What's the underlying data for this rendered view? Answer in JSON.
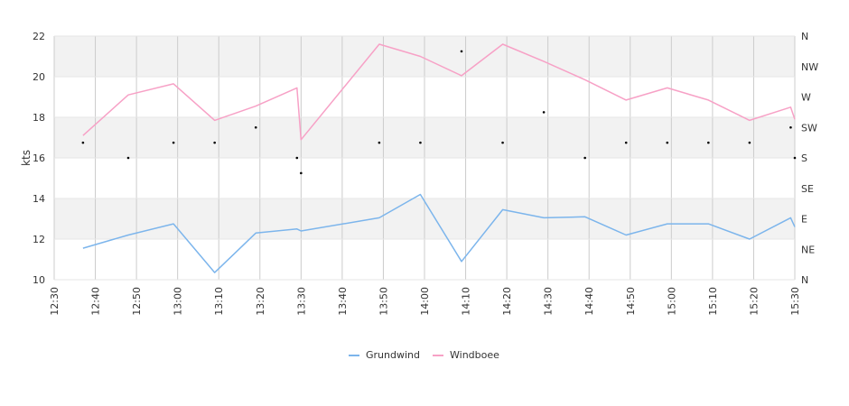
{
  "chart_data": {
    "type": "line",
    "ylabel": "kts",
    "ylim": [
      10,
      22
    ],
    "yticks": [
      10,
      12,
      14,
      16,
      18,
      20,
      22
    ],
    "xlim": [
      "12:30",
      "15:30"
    ],
    "xticks": [
      "12:30",
      "12:40",
      "12:50",
      "13:00",
      "13:10",
      "13:20",
      "13:30",
      "13:40",
      "13:50",
      "14:00",
      "14:10",
      "14:20",
      "14:30",
      "14:40",
      "14:50",
      "15:00",
      "15:10",
      "15:20",
      "15:30"
    ],
    "y2_ticks": [
      "N",
      "NE",
      "E",
      "SE",
      "S",
      "SW",
      "W",
      "NW",
      "N"
    ],
    "grid": true,
    "legend_position": "bottom",
    "colors": {
      "Grundwind": "#7cb5ec",
      "Windboee": "#f7a1c6",
      "direction": "#000000",
      "band": "#f2f2f2",
      "grid": "#cccccc"
    },
    "series": [
      {
        "name": "Grundwind",
        "x": [
          "12:37",
          "12:48",
          "12:59",
          "13:09",
          "13:19",
          "13:29",
          "13:30",
          "13:49",
          "13:59",
          "14:09",
          "14:19",
          "14:29",
          "14:39",
          "14:49",
          "14:59",
          "15:09",
          "15:19",
          "15:29",
          "15:30"
        ],
        "y": [
          11.55,
          12.2,
          12.75,
          10.35,
          12.3,
          12.5,
          12.4,
          13.05,
          14.2,
          10.9,
          13.45,
          13.05,
          13.1,
          12.2,
          12.75,
          12.75,
          12.0,
          13.05,
          12.6
        ]
      },
      {
        "name": "Windboee",
        "x": [
          "12:37",
          "12:48",
          "12:59",
          "13:09",
          "13:19",
          "13:29",
          "13:30",
          "13:49",
          "13:59",
          "14:09",
          "14:19",
          "14:29",
          "14:39",
          "14:49",
          "14:59",
          "15:09",
          "15:19",
          "15:29",
          "15:30"
        ],
        "y": [
          17.1,
          19.1,
          19.65,
          17.85,
          18.55,
          19.45,
          16.9,
          21.6,
          21.0,
          20.05,
          21.6,
          20.75,
          19.85,
          18.85,
          19.45,
          18.85,
          17.85,
          18.5,
          17.9
        ]
      }
    ],
    "direction_points": {
      "x": [
        "12:37",
        "12:48",
        "12:59",
        "13:09",
        "13:19",
        "13:29",
        "13:30",
        "13:49",
        "13:59",
        "14:09",
        "14:19",
        "14:29",
        "14:39",
        "14:49",
        "14:59",
        "15:09",
        "15:19",
        "15:29",
        "15:30"
      ],
      "direction": [
        "SSW",
        "S",
        "SSW",
        "SSW",
        "SW",
        "S",
        "SSE",
        "SSW",
        "SSW",
        "NNW",
        "SSW",
        "WSW",
        "S",
        "SSW",
        "SSW",
        "SSW",
        "SSW",
        "SW",
        "S"
      ]
    }
  }
}
